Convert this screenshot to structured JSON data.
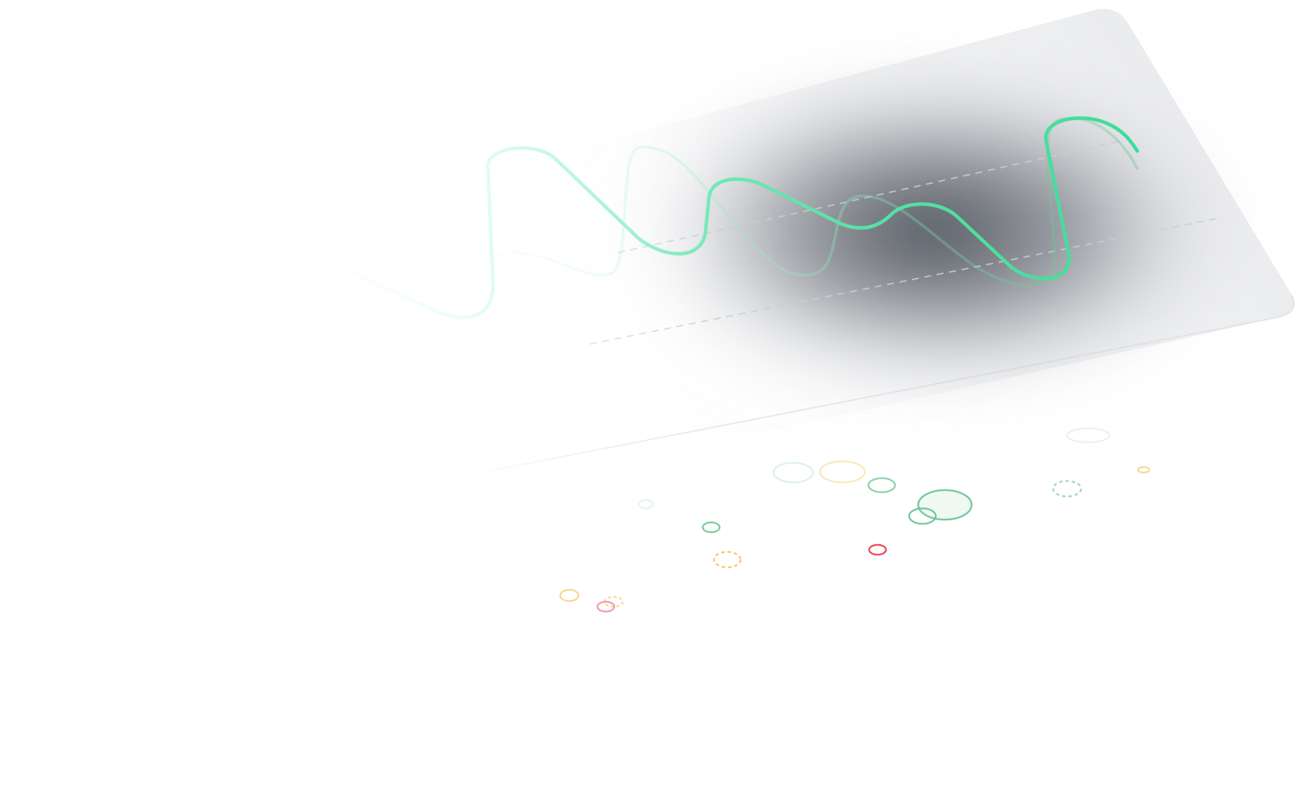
{
  "scene": {
    "description_colors": {
      "background": "#ffffff",
      "panel": "#e9eaed",
      "panel_edge": "#d9dbe0",
      "dark_glow": "#3f454d",
      "wave_stroke": "#3ddc97",
      "wave_stroke_faint": "#7ff0c4",
      "dash_line": "#c9ccd2",
      "bubble_green": "#5fbf8c",
      "bubble_teal": "#7cc7b5",
      "bubble_yellow": "#f2c14e",
      "bubble_red": "#e5484d",
      "bubble_pink": "#f08ca0"
    },
    "icons": [
      "wave-line",
      "dashed-guide-line",
      "bubble-circle"
    ]
  }
}
